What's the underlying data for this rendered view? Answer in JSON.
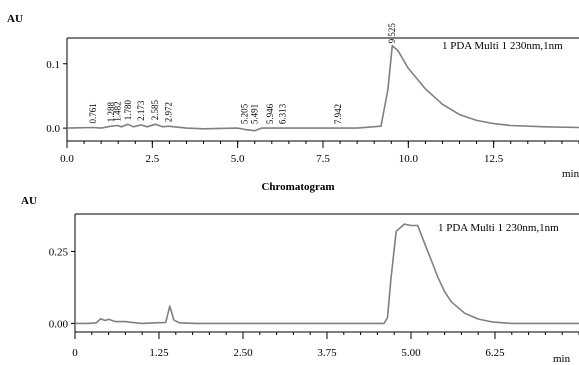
{
  "caption": "Chromatogram",
  "chart_data": [
    {
      "type": "line",
      "title": "",
      "ylabel": "AU",
      "xlabel": "min",
      "xlim": [
        0.0,
        15.0
      ],
      "ylim": [
        -0.02,
        0.14
      ],
      "grid": false,
      "legend": "top-right",
      "x_ticks": [
        0.0,
        2.5,
        5.0,
        7.5,
        10.0,
        12.5
      ],
      "x_tick_labels": [
        "0.0",
        "2.5",
        "5.0",
        "7.5",
        "10.0",
        "12.5"
      ],
      "y_ticks": [
        0.0,
        0.1
      ],
      "y_tick_labels": [
        "0.0",
        "0.1"
      ],
      "series": [
        {
          "name": "1 PDA Multi 1 230nm,1nm",
          "color": "#808080",
          "x": [
            0.0,
            0.76,
            1.0,
            1.29,
            1.48,
            1.6,
            1.78,
            1.95,
            2.17,
            2.35,
            2.58,
            2.8,
            2.97,
            3.5,
            4.0,
            5.0,
            5.2,
            5.49,
            5.7,
            5.95,
            6.31,
            7.0,
            7.94,
            8.5,
            9.2,
            9.4,
            9.53,
            9.7,
            10.0,
            10.5,
            11.0,
            11.5,
            12.0,
            12.5,
            13.0,
            14.0,
            15.0
          ],
          "y": [
            0.0,
            0.001,
            0.0,
            0.003,
            0.004,
            0.002,
            0.006,
            0.002,
            0.005,
            0.002,
            0.006,
            0.002,
            0.003,
            0.0,
            -0.001,
            0.0,
            -0.002,
            -0.004,
            0.0,
            0.0,
            0.0,
            0.0,
            0.0,
            0.0,
            0.003,
            0.06,
            0.128,
            0.12,
            0.093,
            0.061,
            0.037,
            0.021,
            0.012,
            0.007,
            0.004,
            0.002,
            0.001
          ]
        }
      ],
      "peak_labels": [
        {
          "x": 0.761,
          "label": "0.761"
        },
        {
          "x": 1.288,
          "label": "1.288"
        },
        {
          "x": 1.482,
          "label": "1.482"
        },
        {
          "x": 1.78,
          "label": "1.780"
        },
        {
          "x": 2.173,
          "label": "2.173"
        },
        {
          "x": 2.585,
          "label": "2.585"
        },
        {
          "x": 2.972,
          "label": "2.972"
        },
        {
          "x": 5.205,
          "label": "5.205"
        },
        {
          "x": 5.491,
          "label": "5.491"
        },
        {
          "x": 5.946,
          "label": "5.946"
        },
        {
          "x": 6.313,
          "label": "6.313"
        },
        {
          "x": 7.942,
          "label": "7.942"
        },
        {
          "x": 9.525,
          "label": "9.525"
        }
      ]
    },
    {
      "type": "line",
      "title": "",
      "ylabel": "AU",
      "xlabel": "min",
      "xlim": [
        0.0,
        7.5
      ],
      "ylim": [
        -0.03,
        0.38
      ],
      "grid": false,
      "legend": "top-right",
      "x_ticks": [
        0.0,
        1.25,
        2.5,
        3.75,
        5.0,
        6.25
      ],
      "x_tick_labels": [
        "0",
        "1.25",
        "2.50",
        "3.75",
        "5.00",
        "6.25"
      ],
      "y_ticks": [
        0.0,
        0.25
      ],
      "y_tick_labels": [
        "0.00",
        "0.25"
      ],
      "series": [
        {
          "name": "1 PDA Multi 1 230nm,1nm",
          "color": "#808080",
          "x": [
            0.0,
            0.2,
            0.32,
            0.38,
            0.45,
            0.5,
            0.6,
            0.75,
            0.9,
            1.0,
            1.2,
            1.35,
            1.41,
            1.47,
            1.55,
            1.8,
            2.5,
            3.5,
            4.5,
            4.6,
            4.65,
            4.7,
            4.78,
            4.9,
            5.0,
            5.1,
            5.2,
            5.3,
            5.4,
            5.5,
            5.6,
            5.8,
            6.0,
            6.2,
            6.5,
            7.5
          ],
          "y": [
            0.0,
            0.0,
            0.002,
            0.016,
            0.01,
            0.014,
            0.006,
            0.006,
            0.002,
            0.0,
            0.002,
            0.003,
            0.06,
            0.012,
            0.002,
            0.0,
            0.0,
            0.0,
            0.0,
            0.0,
            0.02,
            0.15,
            0.32,
            0.345,
            0.34,
            0.34,
            0.28,
            0.22,
            0.16,
            0.11,
            0.075,
            0.035,
            0.015,
            0.005,
            0.0,
            0.0
          ]
        }
      ]
    }
  ]
}
